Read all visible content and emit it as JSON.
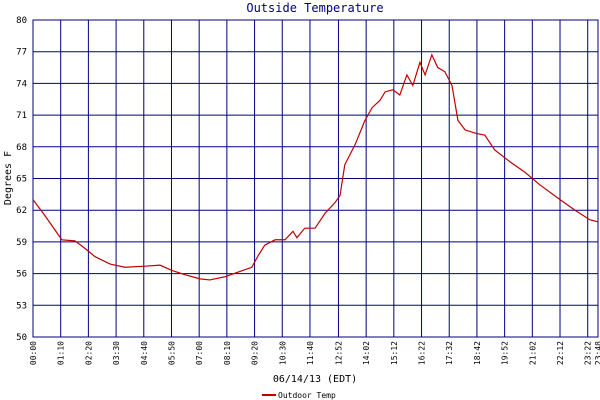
{
  "chart_data": {
    "type": "line",
    "title": "Outside Temperature",
    "x_label": "06/14/13 (EDT)",
    "y_label": "Degrees F",
    "x": [
      0,
      30,
      56,
      73,
      106,
      131,
      157,
      195,
      232,
      283,
      321,
      351,
      384,
      422,
      447,
      485,
      523,
      553,
      569,
      586,
      612,
      637,
      657,
      667,
      687,
      713,
      738,
      763,
      776,
      788,
      814,
      839,
      857,
      877,
      890,
      910,
      927,
      945,
      960,
      978,
      991,
      1008,
      1023,
      1041,
      1059,
      1074,
      1092,
      1117,
      1142,
      1167,
      1205,
      1243,
      1281,
      1332,
      1370,
      1407,
      1428
    ],
    "series": [
      {
        "name": "Outdoor Temp",
        "color": "#c00000",
        "values": [
          63.0,
          61.5,
          60.1,
          59.2,
          59.1,
          58.4,
          57.6,
          56.9,
          56.6,
          56.7,
          56.8,
          56.3,
          55.9,
          55.5,
          55.4,
          55.7,
          56.2,
          56.6,
          57.7,
          58.7,
          59.2,
          59.2,
          60.0,
          59.4,
          60.3,
          60.3,
          61.7,
          62.7,
          63.4,
          66.3,
          68.2,
          70.5,
          71.7,
          72.4,
          73.2,
          73.4,
          72.9,
          74.8,
          73.8,
          76.0,
          74.8,
          76.7,
          75.5,
          75.1,
          73.8,
          70.5,
          69.6,
          69.3,
          69.1,
          67.7,
          66.6,
          65.6,
          64.4,
          63.0,
          62.0,
          61.1,
          60.9
        ]
      }
    ],
    "xlim": [
      0,
      1428
    ],
    "xticks": [
      {
        "value": 0,
        "label": "00:00"
      },
      {
        "value": 70,
        "label": "01:10"
      },
      {
        "value": 140,
        "label": "02:20"
      },
      {
        "value": 210,
        "label": "03:30"
      },
      {
        "value": 280,
        "label": "04:40"
      },
      {
        "value": 350,
        "label": "05:50"
      },
      {
        "value": 420,
        "label": "07:00"
      },
      {
        "value": 490,
        "label": "08:10"
      },
      {
        "value": 560,
        "label": "09:20"
      },
      {
        "value": 630,
        "label": "10:30"
      },
      {
        "value": 700,
        "label": "11:40"
      },
      {
        "value": 772,
        "label": "12:52"
      },
      {
        "value": 842,
        "label": "14:02"
      },
      {
        "value": 912,
        "label": "15:12"
      },
      {
        "value": 982,
        "label": "16:22"
      },
      {
        "value": 1052,
        "label": "17:32"
      },
      {
        "value": 1122,
        "label": "18:42"
      },
      {
        "value": 1192,
        "label": "19:52"
      },
      {
        "value": 1262,
        "label": "21:02"
      },
      {
        "value": 1332,
        "label": "22:12"
      },
      {
        "value": 1402,
        "label": "23:22"
      },
      {
        "value": 1428,
        "label": "23:48"
      }
    ],
    "ylim": [
      50,
      80
    ],
    "yticks": [
      50,
      53,
      56,
      59,
      62,
      65,
      68,
      71,
      74,
      77,
      80
    ],
    "grid": true,
    "grid_color": "#00007f"
  }
}
